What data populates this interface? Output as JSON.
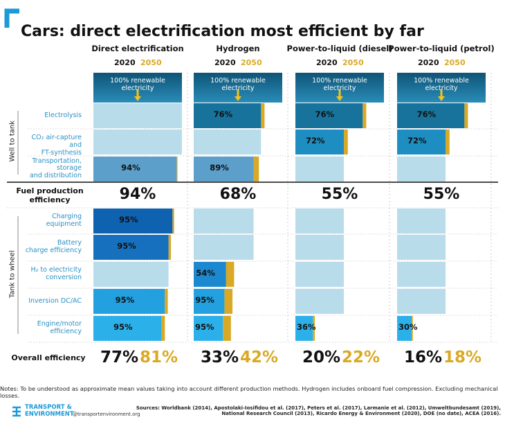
{
  "header": {
    "title": "Cars: direct electrification most efficient by far"
  },
  "years": [
    "2020",
    "2050"
  ],
  "source_label": "100% renewable electricity",
  "stage_groups": [
    "Well to tank",
    "Tank to wheel"
  ],
  "steps": [
    "Electrolysis",
    "CO₂ air-capture and\nFT-synthesis",
    "Transportation,\nstorage\nand distribution",
    "Charging\nequipment",
    "Battery\ncharge efficiency",
    "H₂ to electricity\nconversion",
    "Inversion DC/AC",
    "Engine/motor\nefficiency"
  ],
  "fuel_row_label": "Fuel production\nefficiency",
  "overall_row_label": "Overall efficiency",
  "colors": {
    "light": "#b9dceb",
    "gold": "#d9a925",
    "source": "#14648a",
    "steps": [
      "#17739c",
      "#1e8ec2",
      "#5b9fca",
      "#0f62b0",
      "#1670bd",
      "#1c88cf",
      "#22a0df",
      "#2bb0ea"
    ]
  },
  "pathways": [
    {
      "name": "Direct electrification",
      "steps_2020": [
        null,
        null,
        94,
        95,
        95,
        null,
        95,
        95
      ],
      "step_labels": [
        null,
        null,
        "94%",
        "95%",
        "95%",
        null,
        "95%",
        "95%"
      ],
      "steps_2050": [
        null,
        null,
        95,
        96,
        96,
        null,
        96,
        96
      ],
      "fuel_production": "94%",
      "overall_2020": "77%",
      "overall_2050": "81%"
    },
    {
      "name": "Hydrogen",
      "steps_2020": [
        76,
        null,
        89,
        null,
        null,
        54,
        95,
        95
      ],
      "step_labels": [
        "76%",
        null,
        "89%",
        null,
        null,
        "54%",
        "95%",
        "95%"
      ],
      "steps_2050": [
        80,
        null,
        92,
        null,
        null,
        62,
        96,
        96
      ],
      "fuel_production": "68%",
      "overall_2020": "33%",
      "overall_2050": "42%"
    },
    {
      "name": "Power-to-liquid (diesel)",
      "steps_2020": [
        76,
        72,
        null,
        null,
        null,
        null,
        null,
        36
      ],
      "step_labels": [
        "76%",
        "72%",
        null,
        null,
        null,
        null,
        null,
        "36%"
      ],
      "steps_2050": [
        80,
        74,
        null,
        null,
        null,
        null,
        null,
        37
      ],
      "fuel_production": "55%",
      "overall_2020": "20%",
      "overall_2050": "22%"
    },
    {
      "name": "Power-to-liquid (petrol)",
      "steps_2020": [
        76,
        72,
        null,
        null,
        null,
        null,
        null,
        30
      ],
      "step_labels": [
        "76%",
        "72%",
        null,
        null,
        null,
        null,
        null,
        "30%"
      ],
      "steps_2050": [
        80,
        74,
        null,
        null,
        null,
        null,
        null,
        30
      ],
      "fuel_production": "55%",
      "overall_2020": "16%",
      "overall_2050": "18%"
    }
  ],
  "notes": "Notes: To be understood as approximate mean values taking into account different production methods. Hydrogen includes onboard fuel compression. Excluding mechanical losses.",
  "logo": {
    "name": "TRANSPORT &\nENVIRONMENT",
    "url": "@transportenvironment.org"
  },
  "sources": "Sources: Worldbank (2014), Apostolaki-Iosifidou et al. (2017), Peters et al. (2017), Larmanie et al. (2012), Umweltbundesamt (2019),\nNational Research Council (2013), Ricardo Energy & Environment (2020), DOE (no date), ACEA (2016)."
}
